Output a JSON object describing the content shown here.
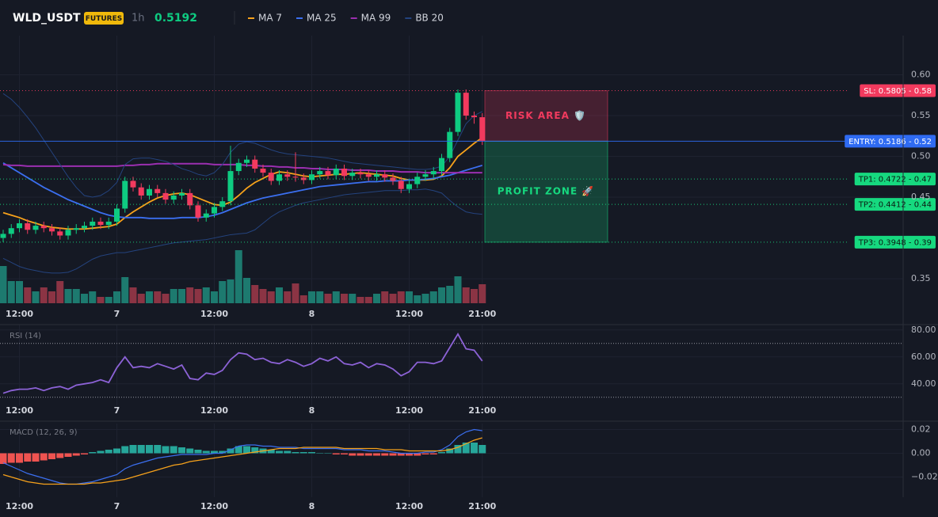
{
  "chart_data": [
    {
      "type": "candlestick",
      "title": "WLD_USDT",
      "badge": "FUTURES",
      "interval": "1h",
      "last_price": 0.5192,
      "up_color": "#0ecb81",
      "down_color": "#f23a5e",
      "xticks": [
        {
          "value": 2,
          "label": "12:00"
        },
        {
          "value": 14,
          "label": "7"
        },
        {
          "value": 26,
          "label": "12:00"
        },
        {
          "value": 38,
          "label": "8"
        },
        {
          "value": 50,
          "label": "12:00"
        },
        {
          "value": 59,
          "label": "21:00"
        }
      ],
      "ylim": [
        0.32,
        0.648
      ],
      "yticks": [
        {
          "value": 0.6,
          "label": "0.60"
        },
        0.55,
        {
          "value": 0.5,
          "label": "0.50"
        },
        0.45,
        0.35
      ],
      "grid": true,
      "open": [
        0.4,
        0.405,
        0.412,
        0.418,
        0.41,
        0.415,
        0.412,
        0.408,
        0.403,
        0.41,
        0.412,
        0.415,
        0.42,
        0.416,
        0.42,
        0.436,
        0.47,
        0.462,
        0.452,
        0.46,
        0.455,
        0.447,
        0.452,
        0.455,
        0.44,
        0.425,
        0.43,
        0.438,
        0.445,
        0.482,
        0.492,
        0.496,
        0.485,
        0.48,
        0.47,
        0.478,
        0.475,
        0.474,
        0.471,
        0.478,
        0.482,
        0.477,
        0.485,
        0.476,
        0.48,
        0.478,
        0.475,
        0.478,
        0.474,
        0.47,
        0.46,
        0.466,
        0.475,
        0.478,
        0.482,
        0.498,
        0.53,
        0.578,
        0.55,
        0.548
      ],
      "high": [
        0.41,
        0.417,
        0.423,
        0.423,
        0.42,
        0.42,
        0.417,
        0.413,
        0.415,
        0.417,
        0.42,
        0.425,
        0.425,
        0.425,
        0.441,
        0.475,
        0.475,
        0.467,
        0.465,
        0.465,
        0.46,
        0.457,
        0.46,
        0.46,
        0.445,
        0.435,
        0.443,
        0.45,
        0.513,
        0.497,
        0.501,
        0.501,
        0.49,
        0.485,
        0.483,
        0.483,
        0.505,
        0.479,
        0.483,
        0.487,
        0.487,
        0.49,
        0.49,
        0.485,
        0.485,
        0.483,
        0.483,
        0.483,
        0.479,
        0.475,
        0.471,
        0.48,
        0.483,
        0.487,
        0.503,
        0.535,
        0.582,
        0.582,
        0.555,
        0.553
      ],
      "low": [
        0.395,
        0.4,
        0.407,
        0.405,
        0.405,
        0.407,
        0.403,
        0.398,
        0.398,
        0.405,
        0.407,
        0.41,
        0.411,
        0.411,
        0.415,
        0.431,
        0.457,
        0.447,
        0.447,
        0.45,
        0.442,
        0.442,
        0.447,
        0.435,
        0.42,
        0.42,
        0.425,
        0.433,
        0.44,
        0.477,
        0.487,
        0.48,
        0.475,
        0.465,
        0.465,
        0.47,
        0.469,
        0.466,
        0.466,
        0.473,
        0.472,
        0.472,
        0.471,
        0.471,
        0.473,
        0.47,
        0.47,
        0.469,
        0.465,
        0.455,
        0.455,
        0.461,
        0.47,
        0.473,
        0.477,
        0.493,
        0.525,
        0.545,
        0.54,
        0.514
      ],
      "close": [
        0.405,
        0.412,
        0.418,
        0.41,
        0.415,
        0.412,
        0.408,
        0.403,
        0.41,
        0.412,
        0.415,
        0.42,
        0.416,
        0.42,
        0.436,
        0.47,
        0.462,
        0.452,
        0.46,
        0.455,
        0.447,
        0.452,
        0.455,
        0.44,
        0.425,
        0.43,
        0.438,
        0.445,
        0.482,
        0.492,
        0.496,
        0.485,
        0.48,
        0.47,
        0.478,
        0.475,
        0.474,
        0.471,
        0.478,
        0.482,
        0.477,
        0.485,
        0.476,
        0.48,
        0.478,
        0.475,
        0.478,
        0.474,
        0.47,
        0.46,
        0.466,
        0.475,
        0.478,
        0.482,
        0.498,
        0.53,
        0.578,
        0.55,
        0.548,
        0.519
      ],
      "volume": [
        47,
        28,
        28,
        20,
        15,
        20,
        15,
        28,
        18,
        18,
        12,
        15,
        8,
        8,
        15,
        33,
        20,
        12,
        15,
        15,
        12,
        18,
        18,
        20,
        18,
        20,
        15,
        28,
        30,
        67,
        32,
        23,
        18,
        15,
        20,
        15,
        25,
        10,
        15,
        15,
        12,
        15,
        12,
        12,
        8,
        8,
        12,
        15,
        12,
        15,
        15,
        10,
        12,
        15,
        20,
        22,
        34,
        20,
        18,
        24
      ],
      "volume_colors": {
        "up": "#1d7a6f",
        "down": "#8b3444"
      },
      "series": [
        {
          "name": "MA 7",
          "color": "#f7a21b",
          "values": [
            0.431,
            0.428,
            0.425,
            0.421,
            0.418,
            0.415,
            0.413,
            0.412,
            0.411,
            0.411,
            0.411,
            0.412,
            0.413,
            0.414,
            0.417,
            0.425,
            0.432,
            0.438,
            0.444,
            0.449,
            0.452,
            0.454,
            0.455,
            0.453,
            0.449,
            0.445,
            0.441,
            0.44,
            0.444,
            0.452,
            0.461,
            0.468,
            0.473,
            0.478,
            0.481,
            0.48,
            0.478,
            0.476,
            0.475,
            0.476,
            0.477,
            0.478,
            0.478,
            0.479,
            0.48,
            0.479,
            0.478,
            0.477,
            0.476,
            0.473,
            0.471,
            0.471,
            0.471,
            0.472,
            0.476,
            0.486,
            0.5,
            0.508,
            0.516,
            0.523
          ]
        },
        {
          "name": "MA 25",
          "color": "#3b6ff0",
          "values": [
            0.492,
            0.486,
            0.48,
            0.474,
            0.468,
            0.462,
            0.457,
            0.452,
            0.447,
            0.443,
            0.439,
            0.435,
            0.431,
            0.428,
            0.426,
            0.425,
            0.425,
            0.425,
            0.424,
            0.424,
            0.424,
            0.424,
            0.425,
            0.425,
            0.425,
            0.426,
            0.428,
            0.431,
            0.435,
            0.439,
            0.443,
            0.446,
            0.449,
            0.451,
            0.453,
            0.455,
            0.457,
            0.459,
            0.461,
            0.463,
            0.464,
            0.465,
            0.466,
            0.467,
            0.468,
            0.469,
            0.469,
            0.47,
            0.47,
            0.47,
            0.471,
            0.471,
            0.472,
            0.473,
            0.475,
            0.477,
            0.48,
            0.483,
            0.486,
            0.489
          ]
        },
        {
          "name": "MA 99",
          "color": "#9b2fb0",
          "values": [
            0.49,
            0.489,
            0.489,
            0.488,
            0.488,
            0.488,
            0.488,
            0.488,
            0.488,
            0.488,
            0.488,
            0.488,
            0.488,
            0.488,
            0.488,
            0.489,
            0.489,
            0.49,
            0.49,
            0.491,
            0.491,
            0.491,
            0.491,
            0.491,
            0.491,
            0.491,
            0.49,
            0.49,
            0.49,
            0.49,
            0.489,
            0.489,
            0.488,
            0.488,
            0.487,
            0.487,
            0.486,
            0.486,
            0.485,
            0.485,
            0.484,
            0.484,
            0.484,
            0.483,
            0.483,
            0.483,
            0.482,
            0.482,
            0.482,
            0.481,
            0.481,
            0.481,
            0.48,
            0.48,
            0.48,
            0.48,
            0.48,
            0.48,
            0.48,
            0.48
          ]
        },
        {
          "name": "BB 20",
          "color": "#24437e",
          "upper": [
            0.577,
            0.57,
            0.56,
            0.548,
            0.535,
            0.52,
            0.505,
            0.49,
            0.475,
            0.462,
            0.452,
            0.45,
            0.452,
            0.458,
            0.468,
            0.49,
            0.497,
            0.498,
            0.498,
            0.496,
            0.494,
            0.49,
            0.485,
            0.482,
            0.478,
            0.476,
            0.48,
            0.49,
            0.505,
            0.515,
            0.518,
            0.516,
            0.512,
            0.508,
            0.505,
            0.503,
            0.502,
            0.501,
            0.5,
            0.499,
            0.498,
            0.496,
            0.494,
            0.492,
            0.491,
            0.49,
            0.489,
            0.488,
            0.487,
            0.486,
            0.485,
            0.484,
            0.484,
            0.485,
            0.488,
            0.5,
            0.52,
            0.54,
            0.55,
            0.555
          ],
          "lower": [
            0.375,
            0.37,
            0.365,
            0.362,
            0.36,
            0.358,
            0.357,
            0.357,
            0.358,
            0.362,
            0.368,
            0.374,
            0.378,
            0.38,
            0.382,
            0.382,
            0.384,
            0.386,
            0.388,
            0.39,
            0.392,
            0.394,
            0.395,
            0.396,
            0.397,
            0.398,
            0.4,
            0.402,
            0.404,
            0.405,
            0.406,
            0.41,
            0.418,
            0.426,
            0.432,
            0.436,
            0.44,
            0.443,
            0.445,
            0.447,
            0.449,
            0.451,
            0.453,
            0.454,
            0.455,
            0.456,
            0.457,
            0.458,
            0.458,
            0.458,
            0.459,
            0.459,
            0.46,
            0.458,
            0.455,
            0.446,
            0.438,
            0.432,
            0.43,
            0.429
          ]
        }
      ],
      "levels": [
        {
          "label": "SL: 0.5805 - 0.58",
          "value": 0.5805,
          "color": "#f23a5e",
          "text_color": "#ffffff",
          "style": "dotted"
        },
        {
          "label": "ENTRY: 0.5186 - 0.52",
          "value": 0.5186,
          "color": "#2f6bf2",
          "text_color": "#ffffff",
          "style": "solid"
        },
        {
          "label": "TP1: 0.4722 - 0.47",
          "value": 0.4722,
          "color": "#16d97f",
          "text_color": "#0b1a12",
          "style": "dotted"
        },
        {
          "label": "TP2: 0.4412 - 0.44",
          "value": 0.4412,
          "color": "#16d97f",
          "text_color": "#0b1a12",
          "style": "dotted"
        },
        {
          "label": "TP3: 0.3948 - 0.39",
          "value": 0.3948,
          "color": "#16d97f",
          "text_color": "#0b1a12",
          "style": "dotted"
        }
      ],
      "zones": [
        {
          "label": "RISK AREA 🛡️",
          "from": 0.5805,
          "to": 0.5186,
          "color": "#f23a5e"
        },
        {
          "label": "PROFIT ZONE 🚀",
          "from": 0.5186,
          "to": 0.3948,
          "color": "#16d97f"
        }
      ]
    },
    {
      "type": "line",
      "title": "RSI (14)",
      "color": "#8c62d6",
      "ylim": [
        24,
        84
      ],
      "yticks": [
        {
          "value": 80,
          "label": "80.00"
        },
        {
          "value": 60,
          "label": "60.00"
        },
        {
          "value": 40,
          "label": "40.00"
        }
      ],
      "bands": [
        70,
        30
      ],
      "values": [
        33,
        35,
        36,
        36,
        37,
        35,
        37,
        38,
        36,
        39,
        40,
        41,
        43,
        41,
        52,
        60,
        52,
        53,
        52,
        55,
        53,
        51,
        54,
        44,
        43,
        48,
        47,
        50,
        58,
        63,
        62,
        58,
        59,
        56,
        55,
        58,
        56,
        53,
        55,
        59,
        57,
        60,
        55,
        54,
        56,
        52,
        55,
        54,
        51,
        46,
        49,
        56,
        56,
        55,
        57,
        67,
        77,
        66,
        65,
        57
      ]
    },
    {
      "type": "macd",
      "title": "MACD (12, 26, 9)",
      "ylim": [
        -0.037,
        0.025
      ],
      "yticks": [
        0.02,
        {
          "value": 0,
          "label": "0.00"
        },
        {
          "value": -0.02,
          "label": "−0.02"
        }
      ],
      "macd": {
        "color": "#3b6ff0",
        "values": [
          -0.008,
          -0.011,
          -0.014,
          -0.017,
          -0.019,
          -0.021,
          -0.023,
          -0.025,
          -0.026,
          -0.026,
          -0.025,
          -0.024,
          -0.022,
          -0.02,
          -0.018,
          -0.013,
          -0.01,
          -0.008,
          -0.006,
          -0.004,
          -0.003,
          -0.002,
          -0.001,
          -0.001,
          -0.001,
          -0.001,
          0,
          0,
          0.003,
          0.006,
          0.007,
          0.007,
          0.006,
          0.006,
          0.005,
          0.005,
          0.005,
          0.004,
          0.004,
          0.004,
          0.004,
          0.004,
          0.003,
          0.003,
          0.003,
          0.002,
          0.002,
          0.002,
          0.001,
          0,
          0,
          0,
          0.001,
          0.001,
          0.003,
          0.007,
          0.014,
          0.018,
          0.02,
          0.019
        ]
      },
      "signal": {
        "color": "#f7a21b",
        "values": [
          -0.018,
          -0.02,
          -0.022,
          -0.024,
          -0.025,
          -0.026,
          -0.026,
          -0.026,
          -0.026,
          -0.026,
          -0.026,
          -0.025,
          -0.025,
          -0.024,
          -0.023,
          -0.022,
          -0.02,
          -0.018,
          -0.016,
          -0.014,
          -0.012,
          -0.01,
          -0.009,
          -0.007,
          -0.006,
          -0.005,
          -0.004,
          -0.003,
          -0.002,
          -0.001,
          0,
          0.001,
          0.002,
          0.003,
          0.004,
          0.004,
          0.004,
          0.005,
          0.005,
          0.005,
          0.005,
          0.005,
          0.004,
          0.004,
          0.004,
          0.004,
          0.004,
          0.003,
          0.003,
          0.003,
          0.002,
          0.002,
          0.002,
          0.002,
          0.002,
          0.003,
          0.005,
          0.008,
          0.011,
          0.013
        ]
      },
      "histogram": {
        "up_color": "#26a69a",
        "down_color": "#ef5350",
        "values": [
          -0.009,
          -0.008,
          -0.008,
          -0.007,
          -0.007,
          -0.006,
          -0.005,
          -0.004,
          -0.003,
          -0.002,
          -0.001,
          0.001,
          0.002,
          0.003,
          0.004,
          0.006,
          0.007,
          0.007,
          0.007,
          0.007,
          0.006,
          0.006,
          0.005,
          0.004,
          0.003,
          0.002,
          0.002,
          0.002,
          0.004,
          0.006,
          0.006,
          0.005,
          0.004,
          0.003,
          0.002,
          0.002,
          0.001,
          0.001,
          0.001,
          0,
          0,
          -0.001,
          -0.001,
          -0.002,
          -0.002,
          -0.002,
          -0.002,
          -0.002,
          -0.002,
          -0.002,
          -0.002,
          -0.002,
          -0.001,
          -0.001,
          0.001,
          0.004,
          0.007,
          0.009,
          0.009,
          0.007
        ]
      }
    }
  ]
}
